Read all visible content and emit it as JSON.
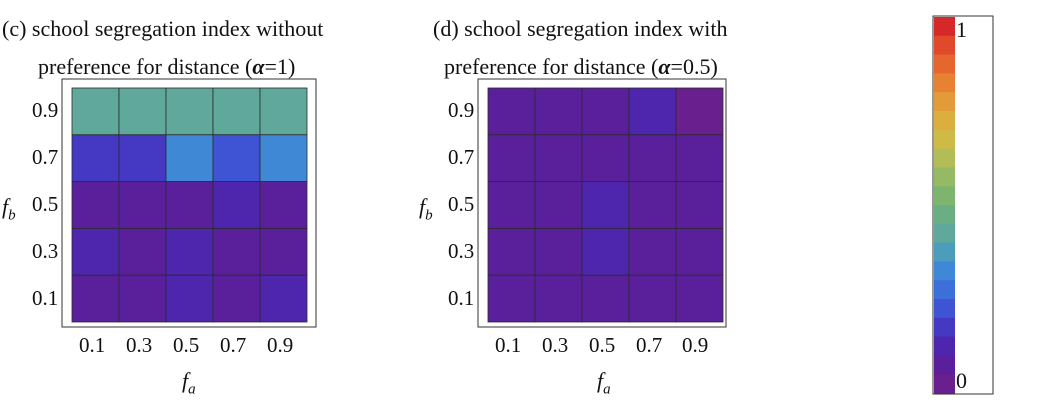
{
  "chart_data": [
    {
      "type": "heatmap",
      "title_line1": "(c) school segregation index without",
      "title_line2_pre": "preference for distance (",
      "title_alpha": "α",
      "title_alpha_value": "=1)",
      "xlabel_base": "f",
      "xlabel_sub": "a",
      "ylabel_base": "f",
      "ylabel_sub": "b",
      "x_ticks": [
        "0.1",
        "0.3",
        "0.5",
        "0.7",
        "0.9"
      ],
      "y_ticks": [
        "0.9",
        "0.7",
        "0.5",
        "0.3",
        "0.1"
      ],
      "rows_top_to_bottom": [
        [
          0.42,
          0.42,
          0.42,
          0.42,
          0.42
        ],
        [
          0.16,
          0.14,
          0.32,
          0.23,
          0.33
        ],
        [
          0.05,
          0.05,
          0.04,
          0.08,
          0.03
        ],
        [
          0.08,
          0.03,
          0.08,
          0.05,
          0.06
        ],
        [
          0.06,
          0.07,
          0.1,
          0.05,
          0.08
        ]
      ],
      "value_range": [
        0,
        1
      ]
    },
    {
      "type": "heatmap",
      "title_line1": "(d) school segregation index with",
      "title_line2_pre": "preference for distance (",
      "title_alpha": "α",
      "title_alpha_value": "=0.5)",
      "xlabel_base": "f",
      "xlabel_sub": "a",
      "ylabel_base": "f",
      "ylabel_sub": "b",
      "x_ticks": [
        "0.1",
        "0.3",
        "0.5",
        "0.7",
        "0.9"
      ],
      "y_ticks": [
        "0.9",
        "0.7",
        "0.5",
        "0.3",
        "0.1"
      ],
      "rows_top_to_bottom": [
        [
          0.06,
          0.06,
          0.04,
          0.12,
          0.02
        ],
        [
          0.06,
          0.05,
          0.05,
          0.05,
          0.06
        ],
        [
          0.06,
          0.06,
          0.1,
          0.05,
          0.06
        ],
        [
          0.07,
          0.06,
          0.09,
          0.05,
          0.06
        ],
        [
          0.07,
          0.07,
          0.07,
          0.07,
          0.07
        ]
      ],
      "value_range": [
        0,
        1
      ]
    }
  ],
  "colorbar": {
    "max_label": "1",
    "min_label": "0",
    "colors_top_to_bottom": [
      "#d62828",
      "#e04a2a",
      "#e6672e",
      "#e78232",
      "#e39a38",
      "#dcae3d",
      "#cdbb46",
      "#b2bd55",
      "#95ba63",
      "#7db56f",
      "#6cae83",
      "#5fa89b",
      "#4b9dbb",
      "#3f88d6",
      "#3d6fdb",
      "#3f54d4",
      "#4538c2",
      "#4e25ad",
      "#5a1f9b",
      "#6a1f8e"
    ]
  }
}
